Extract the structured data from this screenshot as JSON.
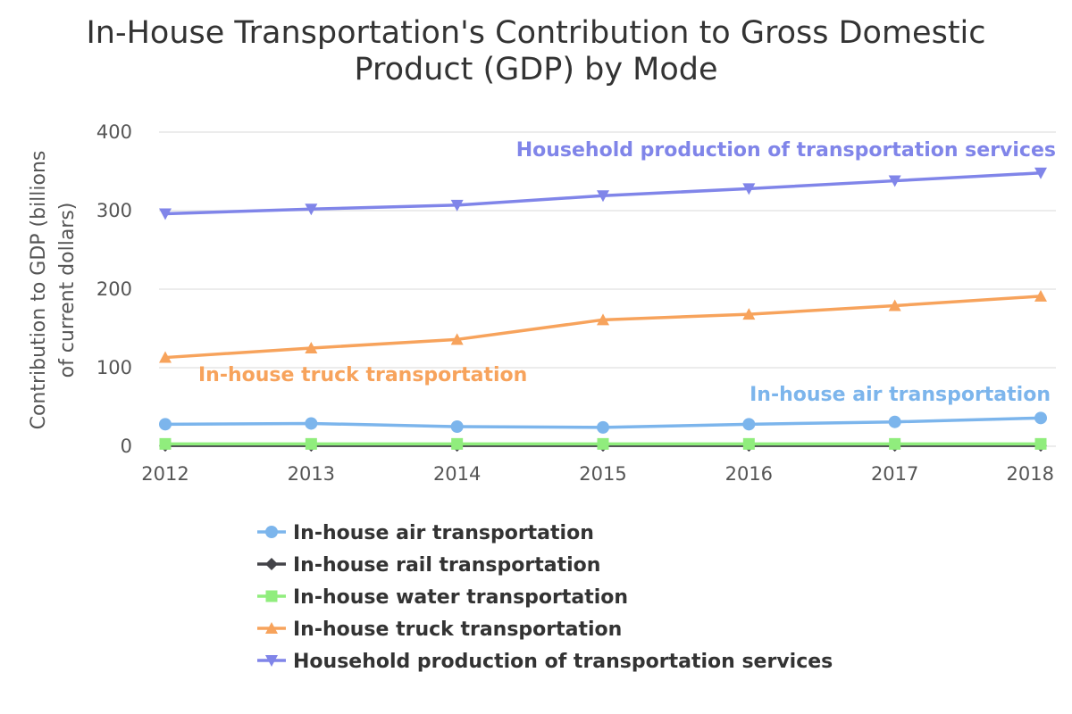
{
  "chart_data": {
    "type": "line",
    "title_lines": [
      "In-House Transportation's Contribution to Gross Domestic",
      "Product (GDP) by Mode"
    ],
    "ylabel_lines": [
      "Contribution to GDP (billions",
      "of current dollars)"
    ],
    "xlabel": "",
    "ylim": [
      0,
      400
    ],
    "yticks": [
      0,
      100,
      200,
      300,
      400
    ],
    "grid": true,
    "categories": [
      "2012",
      "2013",
      "2014",
      "2015",
      "2016",
      "2017",
      "2018"
    ],
    "legend_placement": "bottom",
    "series": [
      {
        "name": "In-house air transportation",
        "marker": "circle",
        "color": "#7cb5ec",
        "inline_label": "In-house air transportation",
        "values": [
          28,
          29,
          25,
          24,
          28,
          31,
          36
        ]
      },
      {
        "name": "In-house rail transportation",
        "marker": "diamond",
        "color": "#434348",
        "values": [
          1,
          1,
          1,
          1,
          1,
          1,
          1
        ]
      },
      {
        "name": "In-house water transportation",
        "marker": "square",
        "color": "#90ed7d",
        "values": [
          3,
          3,
          3,
          3,
          3,
          3,
          3
        ]
      },
      {
        "name": "In-house truck transportation",
        "marker": "triangle-up",
        "color": "#f7a35c",
        "inline_label": "In-house truck transportation",
        "values": [
          113,
          125,
          136,
          161,
          168,
          179,
          191
        ]
      },
      {
        "name": "Household production of transportation services",
        "marker": "triangle-down",
        "color": "#8085e9",
        "inline_label": "Household production of transportation services",
        "values": [
          296,
          302,
          307,
          319,
          328,
          338,
          348
        ]
      }
    ]
  }
}
